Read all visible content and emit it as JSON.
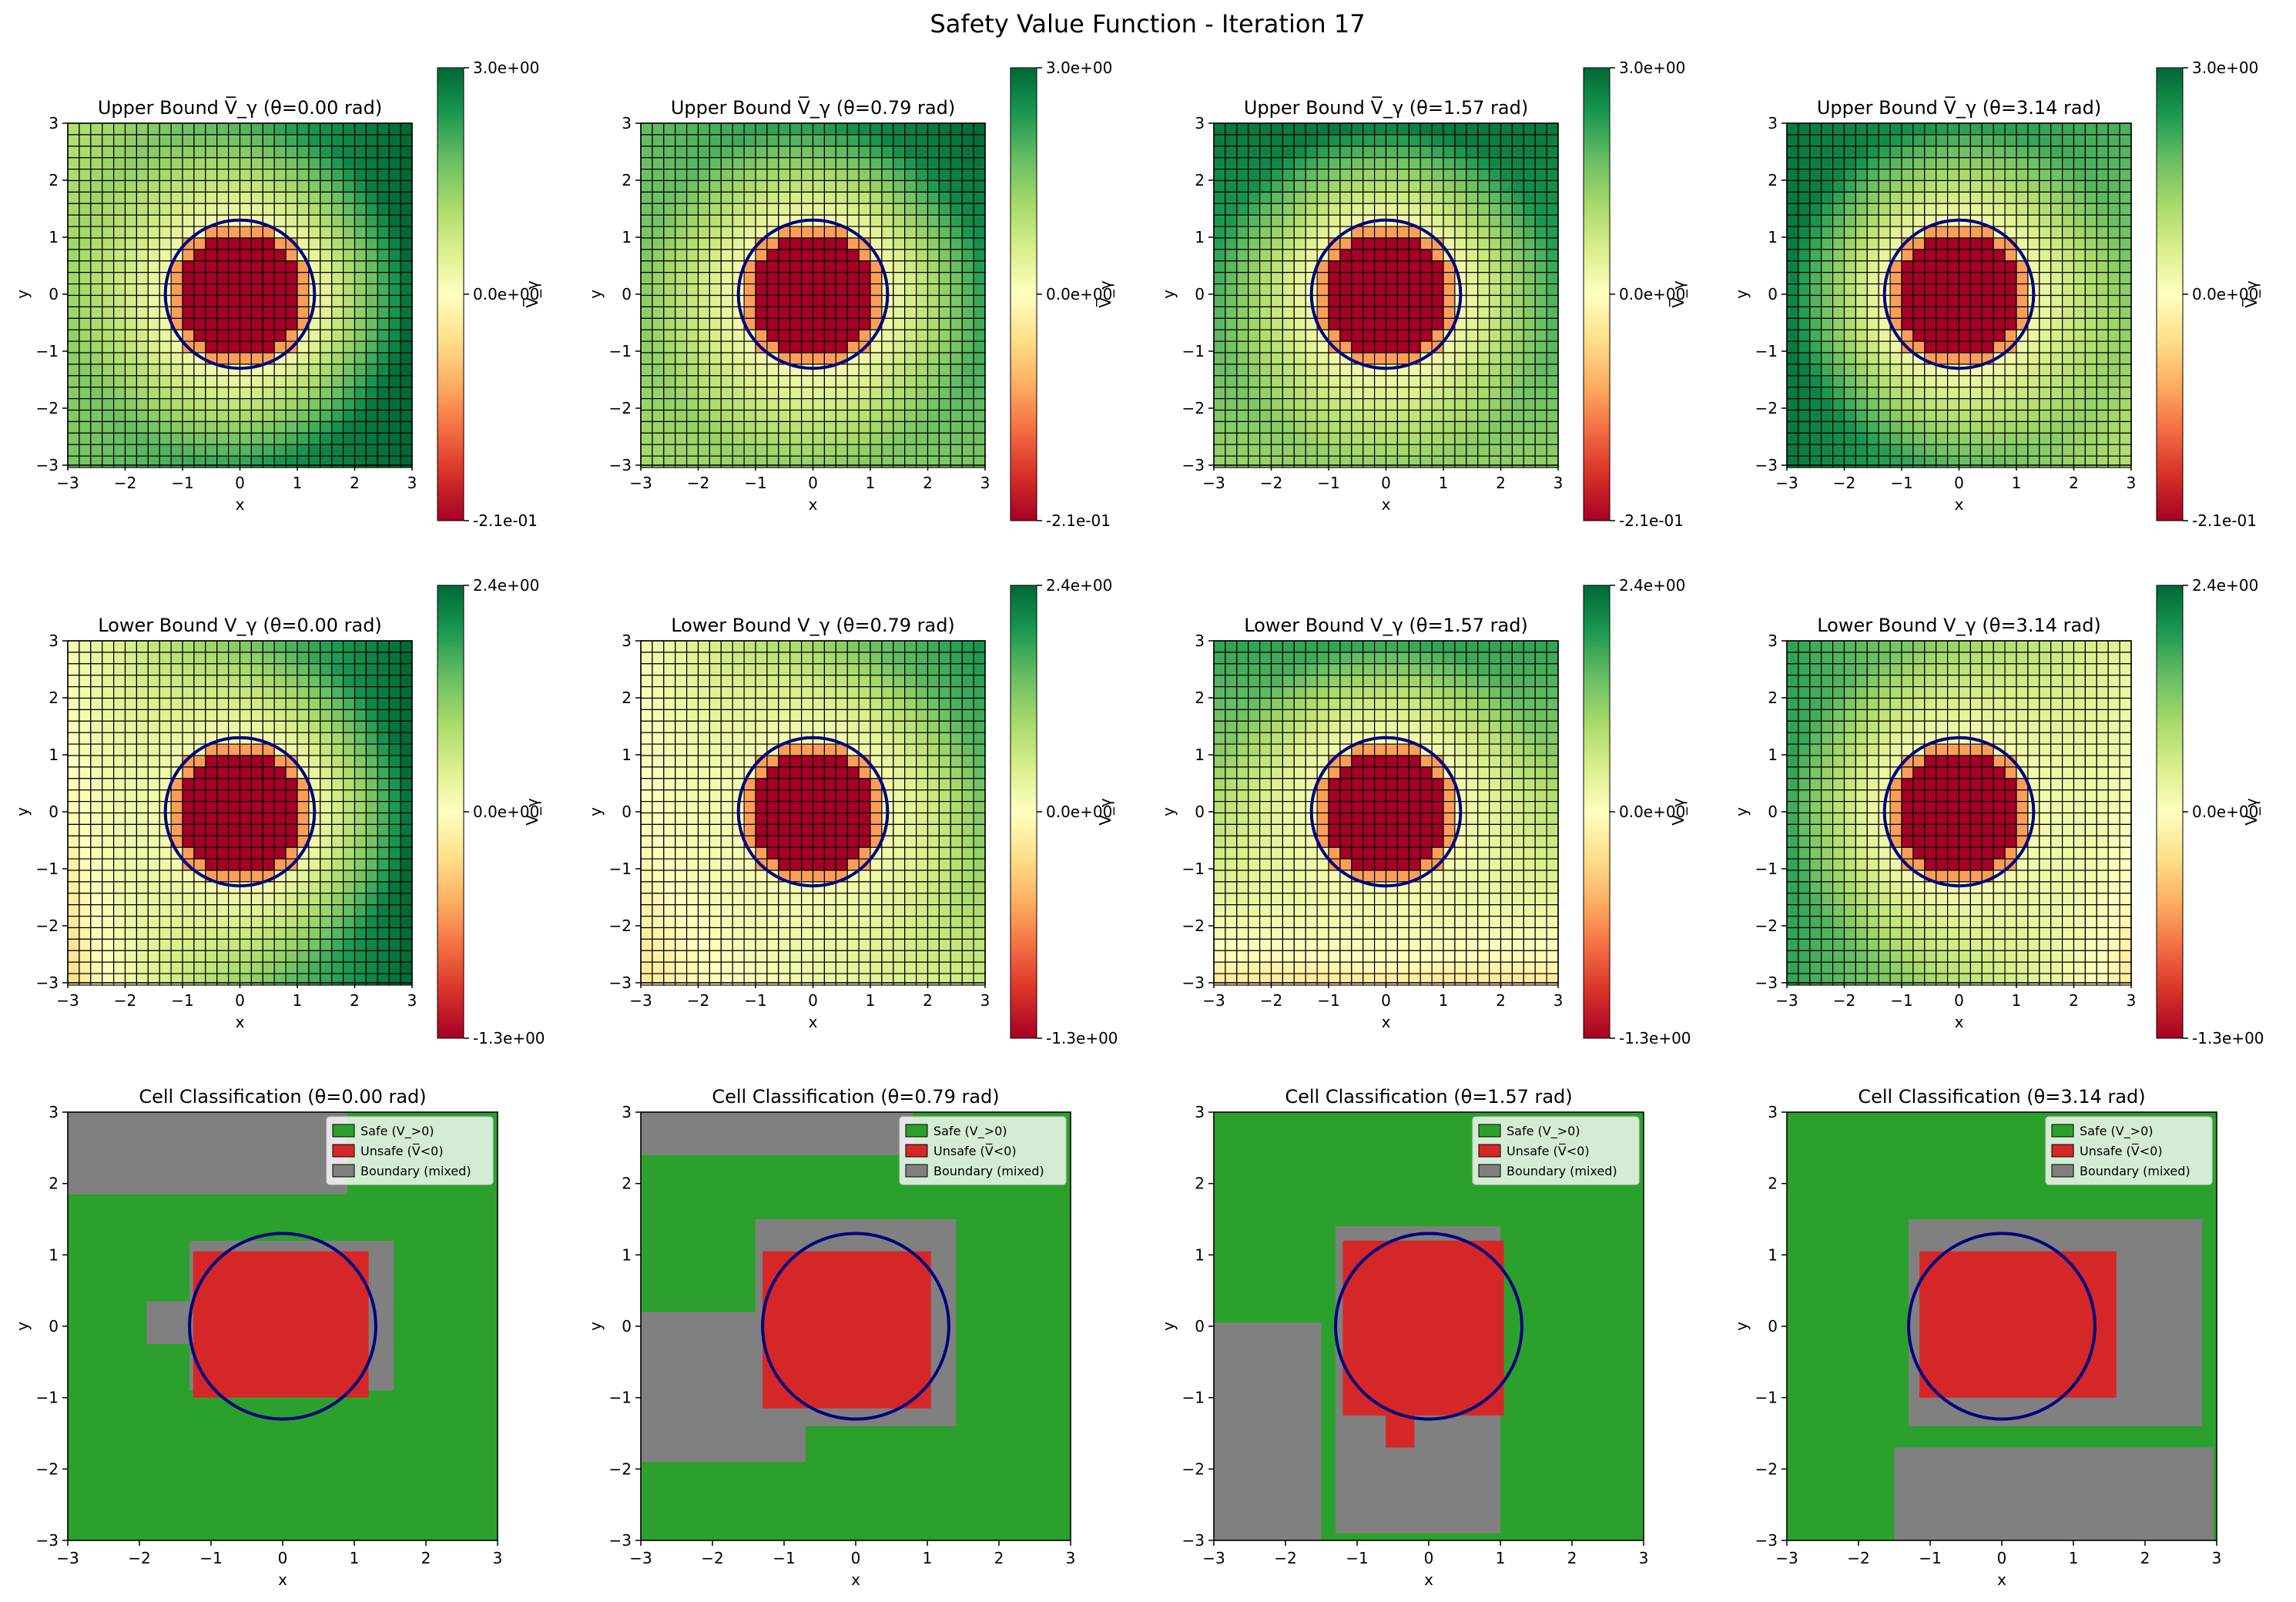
{
  "figure": {
    "suptitle": "Safety Value Function - Iteration 17"
  },
  "colors": {
    "safe": "#2ca02c",
    "unsafe": "#d62728",
    "boundary": "#808080",
    "circle": "#00007f",
    "cmap_low": "#a50026",
    "cmap_mid": "#ffffbf",
    "cmap_high": "#006837"
  },
  "thetas": [
    "0.00",
    "0.79",
    "1.57",
    "3.14"
  ],
  "chart_data": [
    {
      "type": "heatmap",
      "row": "upper",
      "title": "Upper Bound V̅_γ (θ=0.00 rad)",
      "xlabel": "x",
      "ylabel": "y",
      "xlim": [
        -3,
        3
      ],
      "ylim": [
        -3,
        3
      ],
      "xticks": [
        "−3",
        "−2",
        "−1",
        "0",
        "1",
        "2",
        "3"
      ],
      "yticks": [
        "−3",
        "−2",
        "−1",
        "0",
        "1",
        "2",
        "3"
      ],
      "colorbar": {
        "label": "V̅_γ",
        "vmin": -0.21,
        "vmax": 3.0,
        "ticks": [
          "3.0e+00",
          "0.0e+00",
          "-2.1e-01"
        ]
      },
      "obstacle_circle": {
        "cx": 0,
        "cy": 0,
        "r": 1.3
      },
      "grid_cells": 30,
      "corner_values": {
        "tl": 1.0,
        "tr": 3.0,
        "bl": 1.6,
        "br": 3.0
      }
    },
    {
      "type": "heatmap",
      "row": "upper",
      "title": "Upper Bound V̅_γ (θ=0.79 rad)",
      "xlabel": "x",
      "ylabel": "y",
      "xlim": [
        -3,
        3
      ],
      "ylim": [
        -3,
        3
      ],
      "xticks": [
        "−3",
        "−2",
        "−1",
        "0",
        "1",
        "2",
        "3"
      ],
      "yticks": [
        "−3",
        "−2",
        "−1",
        "0",
        "1",
        "2",
        "3"
      ],
      "colorbar": {
        "label": "V̅_γ",
        "vmin": -0.21,
        "vmax": 3.0,
        "ticks": [
          "3.0e+00",
          "0.0e+00",
          "-2.1e-01"
        ]
      },
      "obstacle_circle": {
        "cx": 0,
        "cy": 0,
        "r": 1.3
      },
      "grid_cells": 30,
      "corner_values": {
        "tl": 1.8,
        "tr": 3.0,
        "bl": 1.2,
        "br": 1.6
      }
    },
    {
      "type": "heatmap",
      "row": "upper",
      "title": "Upper Bound V̅_γ (θ=1.57 rad)",
      "xlabel": "x",
      "ylabel": "y",
      "xlim": [
        -3,
        3
      ],
      "ylim": [
        -3,
        3
      ],
      "xticks": [
        "−3",
        "−2",
        "−1",
        "0",
        "1",
        "2",
        "3"
      ],
      "yticks": [
        "−3",
        "−2",
        "−1",
        "0",
        "1",
        "2",
        "3"
      ],
      "colorbar": {
        "label": "V̅_γ",
        "vmin": -0.21,
        "vmax": 3.0,
        "ticks": [
          "3.0e+00",
          "0.0e+00",
          "-2.1e-01"
        ]
      },
      "obstacle_circle": {
        "cx": 0,
        "cy": 0,
        "r": 1.3
      },
      "grid_cells": 30,
      "corner_values": {
        "tl": 2.8,
        "tr": 2.8,
        "bl": 1.3,
        "br": 1.4
      }
    },
    {
      "type": "heatmap",
      "row": "upper",
      "title": "Upper Bound V̅_γ (θ=3.14 rad)",
      "xlabel": "x",
      "ylabel": "y",
      "xlim": [
        -3,
        3
      ],
      "ylim": [
        -3,
        3
      ],
      "xticks": [
        "−3",
        "−2",
        "−1",
        "0",
        "1",
        "2",
        "3"
      ],
      "yticks": [
        "−3",
        "−2",
        "−1",
        "0",
        "1",
        "2",
        "3"
      ],
      "colorbar": {
        "label": "V̅_γ",
        "vmin": -0.21,
        "vmax": 3.0,
        "ticks": [
          "3.0e+00",
          "0.0e+00",
          "-2.1e-01"
        ]
      },
      "obstacle_circle": {
        "cx": 0,
        "cy": 0,
        "r": 1.3
      },
      "grid_cells": 30,
      "corner_values": {
        "tl": 2.8,
        "tr": 2.0,
        "bl": 2.8,
        "br": 1.0
      }
    },
    {
      "type": "heatmap",
      "row": "lower",
      "title": "Lower Bound V_γ (θ=0.00 rad)",
      "xlabel": "x",
      "ylabel": "y",
      "xlim": [
        -3,
        3
      ],
      "ylim": [
        -3,
        3
      ],
      "xticks": [
        "−3",
        "−2",
        "−1",
        "0",
        "1",
        "2",
        "3"
      ],
      "yticks": [
        "−3",
        "−2",
        "−1",
        "0",
        "1",
        "2",
        "3"
      ],
      "colorbar": {
        "label": "V_γ",
        "vmin": -1.3,
        "vmax": 2.4,
        "ticks": [
          "2.4e+00",
          "0.0e+00",
          "-1.3e+00"
        ]
      },
      "obstacle_circle": {
        "cx": 0,
        "cy": 0,
        "r": 1.3
      },
      "grid_cells": 30,
      "corner_values": {
        "tl": 0.1,
        "tr": 2.4,
        "bl": -0.3,
        "br": 2.4
      }
    },
    {
      "type": "heatmap",
      "row": "lower",
      "title": "Lower Bound V_γ (θ=0.79 rad)",
      "xlabel": "x",
      "ylabel": "y",
      "xlim": [
        -3,
        3
      ],
      "ylim": [
        -3,
        3
      ],
      "xticks": [
        "−3",
        "−2",
        "−1",
        "0",
        "1",
        "2",
        "3"
      ],
      "yticks": [
        "−3",
        "−2",
        "−1",
        "0",
        "1",
        "2",
        "3"
      ],
      "colorbar": {
        "label": "V_γ",
        "vmin": -1.3,
        "vmax": 2.4,
        "ticks": [
          "2.4e+00",
          "0.0e+00",
          "-1.3e+00"
        ]
      },
      "obstacle_circle": {
        "cx": 0,
        "cy": 0,
        "r": 1.3
      },
      "grid_cells": 30,
      "corner_values": {
        "tl": 0.1,
        "tr": 2.0,
        "bl": -0.2,
        "br": 0.6
      }
    },
    {
      "type": "heatmap",
      "row": "lower",
      "title": "Lower Bound V_γ (θ=1.57 rad)",
      "xlabel": "x",
      "ylabel": "y",
      "xlim": [
        -3,
        3
      ],
      "ylim": [
        -3,
        3
      ],
      "xticks": [
        "−3",
        "−2",
        "−1",
        "0",
        "1",
        "2",
        "3"
      ],
      "yticks": [
        "−3",
        "−2",
        "−1",
        "0",
        "1",
        "2",
        "3"
      ],
      "colorbar": {
        "label": "V_γ",
        "vmin": -1.3,
        "vmax": 2.4,
        "ticks": [
          "2.4e+00",
          "0.0e+00",
          "-1.3e+00"
        ]
      },
      "obstacle_circle": {
        "cx": 0,
        "cy": 0,
        "r": 1.3
      },
      "grid_cells": 30,
      "corner_values": {
        "tl": 1.8,
        "tr": 1.8,
        "bl": -0.2,
        "br": -0.2
      }
    },
    {
      "type": "heatmap",
      "row": "lower",
      "title": "Lower Bound V_γ (θ=3.14 rad)",
      "xlabel": "x",
      "ylabel": "y",
      "xlim": [
        -3,
        3
      ],
      "ylim": [
        -3,
        3
      ],
      "xticks": [
        "−3",
        "−2",
        "−1",
        "0",
        "1",
        "2",
        "3"
      ],
      "yticks": [
        "−3",
        "−2",
        "−1",
        "0",
        "1",
        "2",
        "3"
      ],
      "colorbar": {
        "label": "V_γ",
        "vmin": -1.3,
        "vmax": 2.4,
        "ticks": [
          "2.4e+00",
          "0.0e+00",
          "-1.3e+00"
        ]
      },
      "obstacle_circle": {
        "cx": 0,
        "cy": 0,
        "r": 1.3
      },
      "grid_cells": 30,
      "corner_values": {
        "tl": 1.8,
        "tr": 0.3,
        "bl": 1.8,
        "br": -0.2
      }
    },
    {
      "type": "heatmap",
      "row": "class",
      "title": "Cell Classification (θ=0.00 rad)",
      "xlabel": "x",
      "ylabel": "y",
      "xlim": [
        -3,
        3
      ],
      "ylim": [
        -3,
        3
      ],
      "xticks": [
        "−3",
        "−2",
        "−1",
        "0",
        "1",
        "2",
        "3"
      ],
      "yticks": [
        "−3",
        "−2",
        "−1",
        "0",
        "1",
        "2",
        "3"
      ],
      "legend": {
        "placement": "top-right",
        "entries": [
          "Safe (V_>0)",
          "Unsafe (V̅<0)",
          "Boundary (mixed)"
        ]
      },
      "obstacle_circle": {
        "cx": 0,
        "cy": 0,
        "r": 1.3
      },
      "regions": {
        "boundary": [
          [
            -3,
            1.85,
            0.9,
            3
          ],
          [
            -1.9,
            -0.25,
            1.55,
            0.35
          ],
          [
            -1.3,
            -0.9,
            1.55,
            1.2
          ]
        ],
        "unsafe": [
          [
            -1.25,
            -1.0,
            1.2,
            1.05
          ]
        ]
      }
    },
    {
      "type": "heatmap",
      "row": "class",
      "title": "Cell Classification (θ=0.79 rad)",
      "xlabel": "x",
      "ylabel": "y",
      "xlim": [
        -3,
        3
      ],
      "ylim": [
        -3,
        3
      ],
      "xticks": [
        "−3",
        "−2",
        "−1",
        "0",
        "1",
        "2",
        "3"
      ],
      "yticks": [
        "−3",
        "−2",
        "−1",
        "0",
        "1",
        "2",
        "3"
      ],
      "legend": {
        "placement": "top-right",
        "entries": [
          "Safe (V_>0)",
          "Unsafe (V̅<0)",
          "Boundary (mixed)"
        ]
      },
      "obstacle_circle": {
        "cx": 0,
        "cy": 0,
        "r": 1.3
      },
      "regions": {
        "boundary": [
          [
            -3,
            2.4,
            0.8,
            3
          ],
          [
            -3,
            -1.9,
            -0.7,
            0.2
          ],
          [
            -1.4,
            -1.4,
            1.4,
            1.5
          ]
        ],
        "unsafe": [
          [
            -1.3,
            -1.15,
            1.05,
            1.05
          ]
        ]
      }
    },
    {
      "type": "heatmap",
      "row": "class",
      "title": "Cell Classification (θ=1.57 rad)",
      "xlabel": "x",
      "ylabel": "y",
      "xlim": [
        -3,
        3
      ],
      "ylim": [
        -3,
        3
      ],
      "xticks": [
        "−3",
        "−2",
        "−1",
        "0",
        "1",
        "2",
        "3"
      ],
      "yticks": [
        "−3",
        "−2",
        "−1",
        "0",
        "1",
        "2",
        "3"
      ],
      "legend": {
        "placement": "top-right",
        "entries": [
          "Safe (V_>0)",
          "Unsafe (V̅<0)",
          "Boundary (mixed)"
        ]
      },
      "obstacle_circle": {
        "cx": 0,
        "cy": 0,
        "r": 1.3
      },
      "regions": {
        "boundary": [
          [
            -3,
            -3,
            -1.5,
            0.05
          ],
          [
            -1.3,
            -2.9,
            1.0,
            1.4
          ]
        ],
        "unsafe": [
          [
            -1.2,
            -1.25,
            1.05,
            1.2
          ],
          [
            -0.6,
            -1.7,
            -0.2,
            -1.2
          ]
        ]
      }
    },
    {
      "type": "heatmap",
      "row": "class",
      "title": "Cell Classification (θ=3.14 rad)",
      "xlabel": "x",
      "ylabel": "y",
      "xlim": [
        -3,
        3
      ],
      "ylim": [
        -3,
        3
      ],
      "xticks": [
        "−3",
        "−2",
        "−1",
        "0",
        "1",
        "2",
        "3"
      ],
      "yticks": [
        "−3",
        "−2",
        "−1",
        "0",
        "1",
        "2",
        "3"
      ],
      "legend": {
        "placement": "top-right",
        "entries": [
          "Safe (V_>0)",
          "Unsafe (V̅<0)",
          "Boundary (mixed)"
        ]
      },
      "obstacle_circle": {
        "cx": 0,
        "cy": 0,
        "r": 1.3
      },
      "regions": {
        "boundary": [
          [
            -1.3,
            -1.4,
            2.8,
            1.5
          ],
          [
            -1.5,
            -3,
            2.95,
            -1.7
          ]
        ],
        "unsafe": [
          [
            -1.15,
            -1.0,
            1.6,
            1.05
          ]
        ]
      }
    }
  ]
}
